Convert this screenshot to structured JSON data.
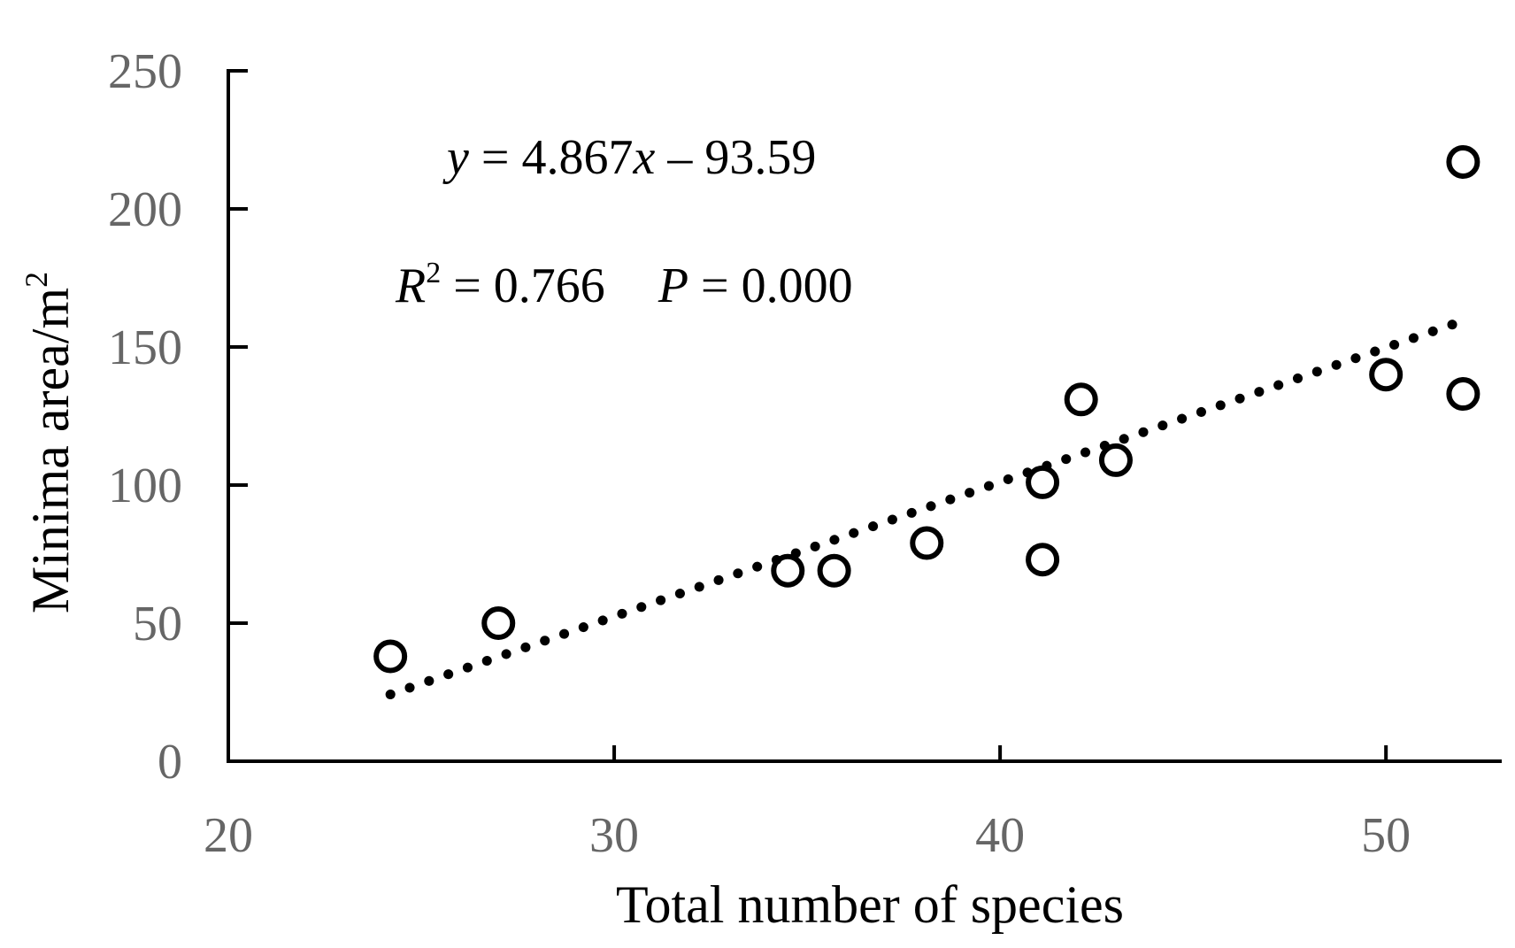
{
  "chart_data": {
    "type": "scatter",
    "title": "",
    "xlabel": "Total number of species",
    "ylabel": "Minima area/m",
    "ylabel_superscript": "2",
    "xlim": [
      20,
      53
    ],
    "ylim": [
      0,
      250
    ],
    "x_ticks": [
      20,
      30,
      40,
      50
    ],
    "y_ticks": [
      0,
      50,
      100,
      150,
      200,
      250
    ],
    "grid": false,
    "legend": "none",
    "points": [
      {
        "x": 24.2,
        "y": 38
      },
      {
        "x": 27.0,
        "y": 50
      },
      {
        "x": 34.5,
        "y": 69
      },
      {
        "x": 35.7,
        "y": 69
      },
      {
        "x": 38.1,
        "y": 79
      },
      {
        "x": 41.1,
        "y": 101
      },
      {
        "x": 41.1,
        "y": 73
      },
      {
        "x": 42.1,
        "y": 131
      },
      {
        "x": 43.0,
        "y": 109
      },
      {
        "x": 50.0,
        "y": 140
      },
      {
        "x": 52.0,
        "y": 133
      },
      {
        "x": 52.0,
        "y": 217
      }
    ],
    "trendline": {
      "slope": 4.867,
      "intercept": -93.59,
      "x_start": 24.2,
      "x_end": 52.0,
      "style": "dotted"
    },
    "annotations": {
      "equation": {
        "y_var": "y",
        "eq": " = 4.867",
        "x_var": "x",
        "rest": " – 93.59"
      },
      "stats": {
        "r_var": "R",
        "r_sup": "2",
        "r_val": " = 0.766",
        "p_var": "P",
        "p_val": " = 0.000"
      }
    },
    "colors": {
      "axis": "#000000",
      "tick_text": "#666666",
      "marker": "#000000"
    }
  }
}
